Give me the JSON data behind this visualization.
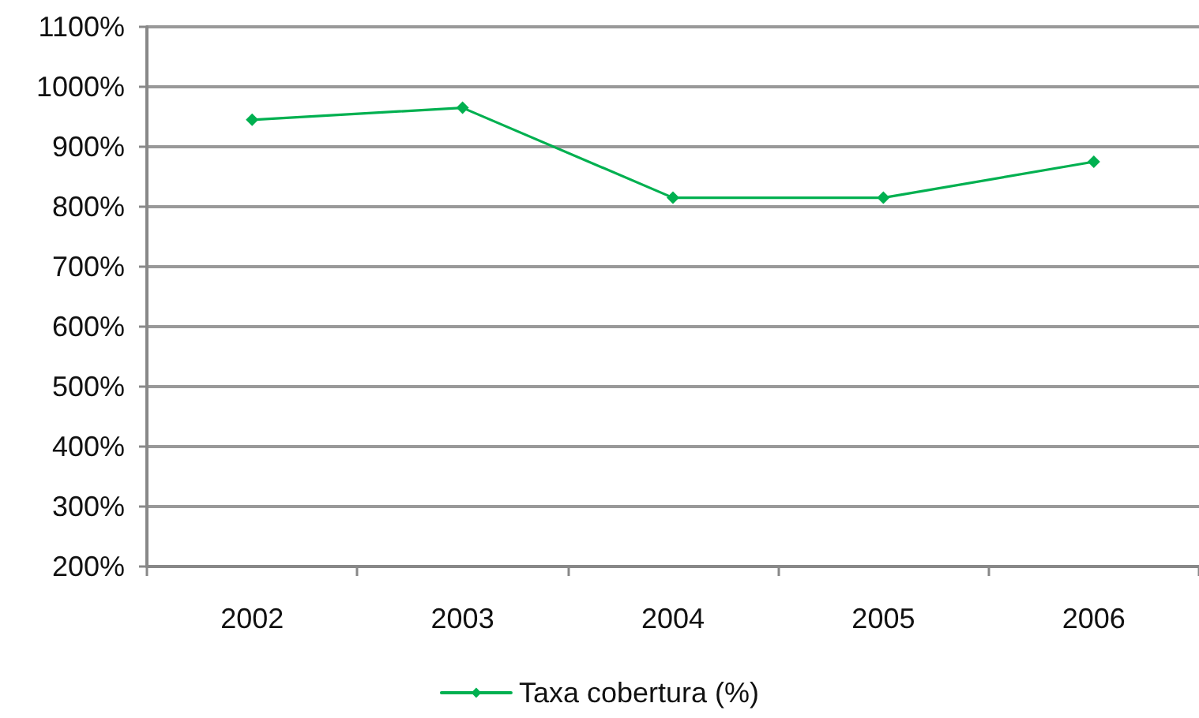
{
  "chart_data": {
    "type": "line",
    "categories": [
      "2002",
      "2003",
      "2004",
      "2005",
      "2006"
    ],
    "series": [
      {
        "name": "Taxa cobertura (%)",
        "color": "#00b050",
        "values": [
          945,
          965,
          815,
          815,
          875
        ]
      }
    ],
    "ylim": [
      200,
      1100
    ],
    "yticks": [
      {
        "value": 200,
        "label": "200%"
      },
      {
        "value": 300,
        "label": "300%"
      },
      {
        "value": 400,
        "label": "400%"
      },
      {
        "value": 500,
        "label": "500%"
      },
      {
        "value": 600,
        "label": "600%"
      },
      {
        "value": 700,
        "label": "700%"
      },
      {
        "value": 800,
        "label": "800%"
      },
      {
        "value": 900,
        "label": "900%"
      },
      {
        "value": 1000,
        "label": "1000%"
      },
      {
        "value": 1100,
        "label": "1100%"
      }
    ],
    "grid": "y",
    "legend": "bottom",
    "marker": "diamond",
    "line_style": "solid"
  }
}
